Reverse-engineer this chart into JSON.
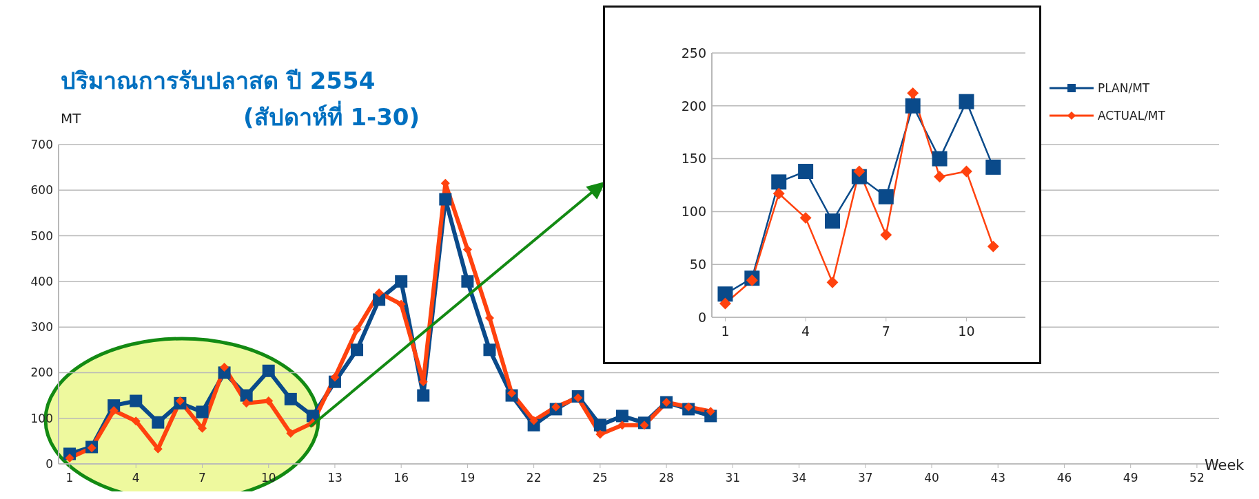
{
  "chart_data": [
    {
      "type": "line",
      "title": "ปริมาณการรับปลาสด ปี 2554",
      "subtitle": "(สัปดาห์ที่ 1-30)",
      "xlabel": "Week",
      "ylabel": "MT",
      "x": [
        1,
        2,
        3,
        4,
        5,
        6,
        7,
        8,
        9,
        10,
        11,
        12,
        13,
        14,
        15,
        16,
        17,
        18,
        19,
        20,
        21,
        22,
        23,
        24,
        25,
        26,
        27,
        28,
        29,
        30
      ],
      "xlim": [
        0.5,
        53
      ],
      "xticks": [
        1,
        4,
        7,
        10,
        13,
        16,
        19,
        22,
        25,
        28,
        31,
        34,
        37,
        40,
        43,
        46,
        49,
        52
      ],
      "ylim": [
        0,
        700
      ],
      "yticks": [
        0,
        100,
        200,
        300,
        400,
        500,
        600,
        700
      ],
      "grid": "y",
      "legend": false,
      "series": [
        {
          "color": "#0a4a8a",
          "marker": "square",
          "values": [
            22,
            37,
            128,
            138,
            91,
            133,
            114,
            200,
            150,
            204,
            142,
            105,
            180,
            250,
            360,
            400,
            150,
            580,
            400,
            250,
            150,
            85,
            120,
            148,
            85,
            105,
            90,
            135,
            120,
            105
          ]
        },
        {
          "color": "#ff420e",
          "marker": "diamond",
          "values": [
            13,
            35,
            117,
            94,
            33,
            138,
            78,
            212,
            133,
            138,
            67,
            90,
            190,
            295,
            375,
            350,
            180,
            615,
            470,
            320,
            155,
            95,
            125,
            145,
            65,
            85,
            85,
            135,
            125,
            115
          ]
        }
      ]
    },
    {
      "type": "line",
      "x": [
        1,
        2,
        3,
        4,
        5,
        6,
        7,
        8,
        9,
        10,
        11
      ],
      "xlim": [
        0.5,
        12.2
      ],
      "xticks": [
        1,
        4,
        7,
        10
      ],
      "ylim": [
        0,
        250
      ],
      "yticks": [
        0,
        50,
        100,
        150,
        200,
        250
      ],
      "grid": "y",
      "legend": "right",
      "series": [
        {
          "name": "PLAN/MT",
          "color": "#0a4a8a",
          "marker": "square",
          "values": [
            22,
            37,
            128,
            138,
            91,
            133,
            114,
            200,
            150,
            204,
            142
          ]
        },
        {
          "name": "ACTUAL/MT",
          "color": "#ff420e",
          "marker": "diamond",
          "values": [
            13,
            35,
            117,
            94,
            33,
            138,
            78,
            212,
            133,
            138,
            67
          ]
        }
      ]
    }
  ]
}
